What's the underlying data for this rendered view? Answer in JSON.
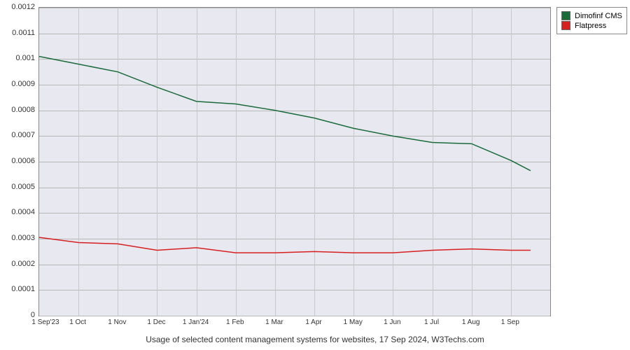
{
  "chart": {
    "type": "line",
    "caption": "Usage of selected content management systems for websites, 17 Sep 2024, W3Techs.com",
    "background_color": "#e8e8f0",
    "grid_color": "#b8b8b8",
    "plot_border_color": "#888888",
    "x_labels": [
      "1 Sep'23",
      "1 Oct",
      "1 Nov",
      "1 Dec",
      "1 Jan'24",
      "1 Feb",
      "1 Mar",
      "1 Apr",
      "1 May",
      "1 Jun",
      "1 Jul",
      "1 Aug",
      "1 Sep"
    ],
    "y_ticks": [
      0,
      0.0001,
      0.0002,
      0.0003,
      0.0004,
      0.0005,
      0.0006,
      0.0007,
      0.0008,
      0.0009,
      0.001,
      0.0011,
      0.0012
    ],
    "ylim": [
      0,
      0.0012
    ],
    "label_fontsize": 11,
    "caption_fontsize": 12,
    "line_width": 1.5,
    "series": [
      {
        "name": "Dimofinf CMS",
        "color": "#1a6b3a",
        "x": [
          0,
          1,
          2,
          3,
          4,
          5,
          6,
          7,
          8,
          9,
          10,
          11,
          12,
          12.5
        ],
        "y": [
          0.00101,
          0.00098,
          0.00095,
          0.00089,
          0.000835,
          0.000825,
          0.0008,
          0.00077,
          0.00073,
          0.0007,
          0.000675,
          0.00067,
          0.000605,
          0.000565
        ]
      },
      {
        "name": "Flatpress",
        "color": "#d62020",
        "x": [
          0,
          1,
          2,
          3,
          4,
          5,
          6,
          7,
          8,
          9,
          10,
          11,
          12,
          12.5
        ],
        "y": [
          0.000305,
          0.000285,
          0.00028,
          0.000255,
          0.000265,
          0.000245,
          0.000245,
          0.00025,
          0.000245,
          0.000245,
          0.000255,
          0.00026,
          0.000255,
          0.000255
        ]
      }
    ],
    "legend": {
      "position": "outside-right-top",
      "items": [
        {
          "label": "Dimofinf CMS",
          "color": "#1a6b3a"
        },
        {
          "label": "Flatpress",
          "color": "#d62020"
        }
      ]
    }
  }
}
